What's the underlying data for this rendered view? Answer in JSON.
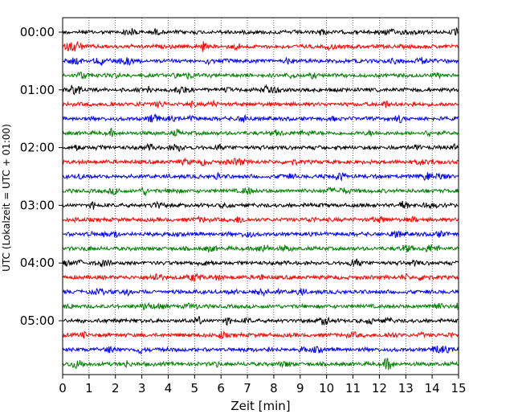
{
  "chart_data": {
    "type": "line",
    "title": "",
    "xlabel": "Zeit  [min]",
    "ylabel": "UTC (Lokalzeit = UTC + 01:00)",
    "xlim": [
      0,
      15
    ],
    "x_ticks": [
      "0",
      "1",
      "2",
      "3",
      "4",
      "5",
      "6",
      "7",
      "8",
      "9",
      "10",
      "11",
      "12",
      "13",
      "14",
      "15"
    ],
    "y_tick_labels": [
      "00:00",
      "01:00",
      "02:00",
      "03:00",
      "04:00",
      "05:00"
    ],
    "trace_interval_min": 15,
    "trace_start_times": [
      "00:00",
      "00:15",
      "00:30",
      "00:45",
      "01:00",
      "01:15",
      "01:30",
      "01:45",
      "02:00",
      "02:15",
      "02:30",
      "02:45",
      "03:00",
      "03:15",
      "03:30",
      "03:45",
      "04:00",
      "04:15",
      "04:30",
      "04:45",
      "05:00",
      "05:15",
      "05:30",
      "05:45"
    ],
    "series_colors": [
      "#000000",
      "#ff0000",
      "#0000ff",
      "#008000"
    ],
    "vertical_grid": "dotted",
    "legend": "none"
  }
}
